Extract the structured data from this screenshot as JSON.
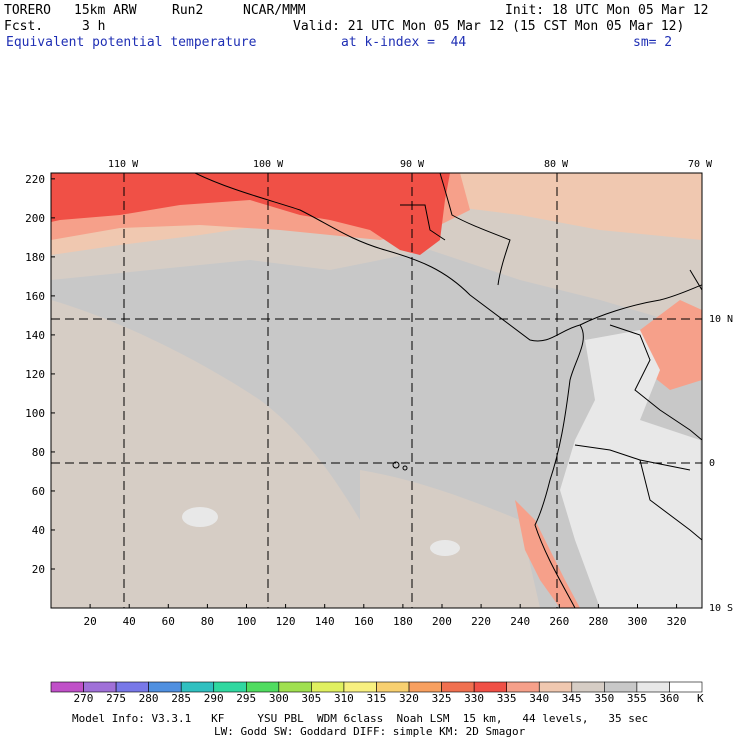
{
  "header": {
    "model": "TORERO",
    "resolution": "15km ARW",
    "run": "Run2",
    "org": "NCAR/MMM",
    "init": "Init: 18 UTC Mon 05 Mar 12",
    "fcst_label": "Fcst.",
    "fcst_value": "3 h",
    "valid": "Valid: 21 UTC Mon 05 Mar 12 (15 CST Mon 05 Mar 12)",
    "field": "Equivalent potential temperature",
    "level": "at k-index =  44",
    "smoothing": "sm= 2"
  },
  "map": {
    "lon_labels": [
      "110 W",
      "100 W",
      "90 W",
      "80 W",
      "70 W"
    ],
    "lat_labels": [
      "10 N",
      "0",
      "10 S"
    ],
    "y_ticks": [
      "20",
      "40",
      "60",
      "80",
      "100",
      "120",
      "140",
      "160",
      "180",
      "200",
      "220"
    ],
    "x_ticks": [
      "20",
      "40",
      "60",
      "80",
      "100",
      "120",
      "140",
      "160",
      "180",
      "200",
      "220",
      "240",
      "260",
      "280",
      "300",
      "320"
    ],
    "colors": {
      "very_warm": "#f05046",
      "warm": "#f6a08a",
      "mild": "#f0c8b0",
      "neutral": "#d6cdc5",
      "cool": "#c8c8c8",
      "cold": "#e8e8e8"
    }
  },
  "colorbar": {
    "labels": [
      "270",
      "275",
      "280",
      "285",
      "290",
      "295",
      "300",
      "305",
      "310",
      "315",
      "320",
      "325",
      "330",
      "335",
      "340",
      "345",
      "350",
      "355",
      "360"
    ],
    "unit": "K",
    "colors": [
      "#c050c8",
      "#a070d8",
      "#7878e8",
      "#5090e0",
      "#30c0c0",
      "#30d8a0",
      "#50dc60",
      "#a0e050",
      "#e0f060",
      "#f8f080",
      "#f8d070",
      "#f8a060",
      "#f07050",
      "#f05046",
      "#f6a08a",
      "#f0c8b0",
      "#d6cdc5",
      "#c8c8c8",
      "#e8e8e8",
      "#ffffff"
    ]
  },
  "footer": {
    "line1": "Model Info: V3.3.1   KF     YSU PBL  WDM 6class  Noah LSM  15 km,   44 levels,   35 sec",
    "line2": "LW: Godd SW: Goddard DIFF: simple KM: 2D Smagor"
  }
}
